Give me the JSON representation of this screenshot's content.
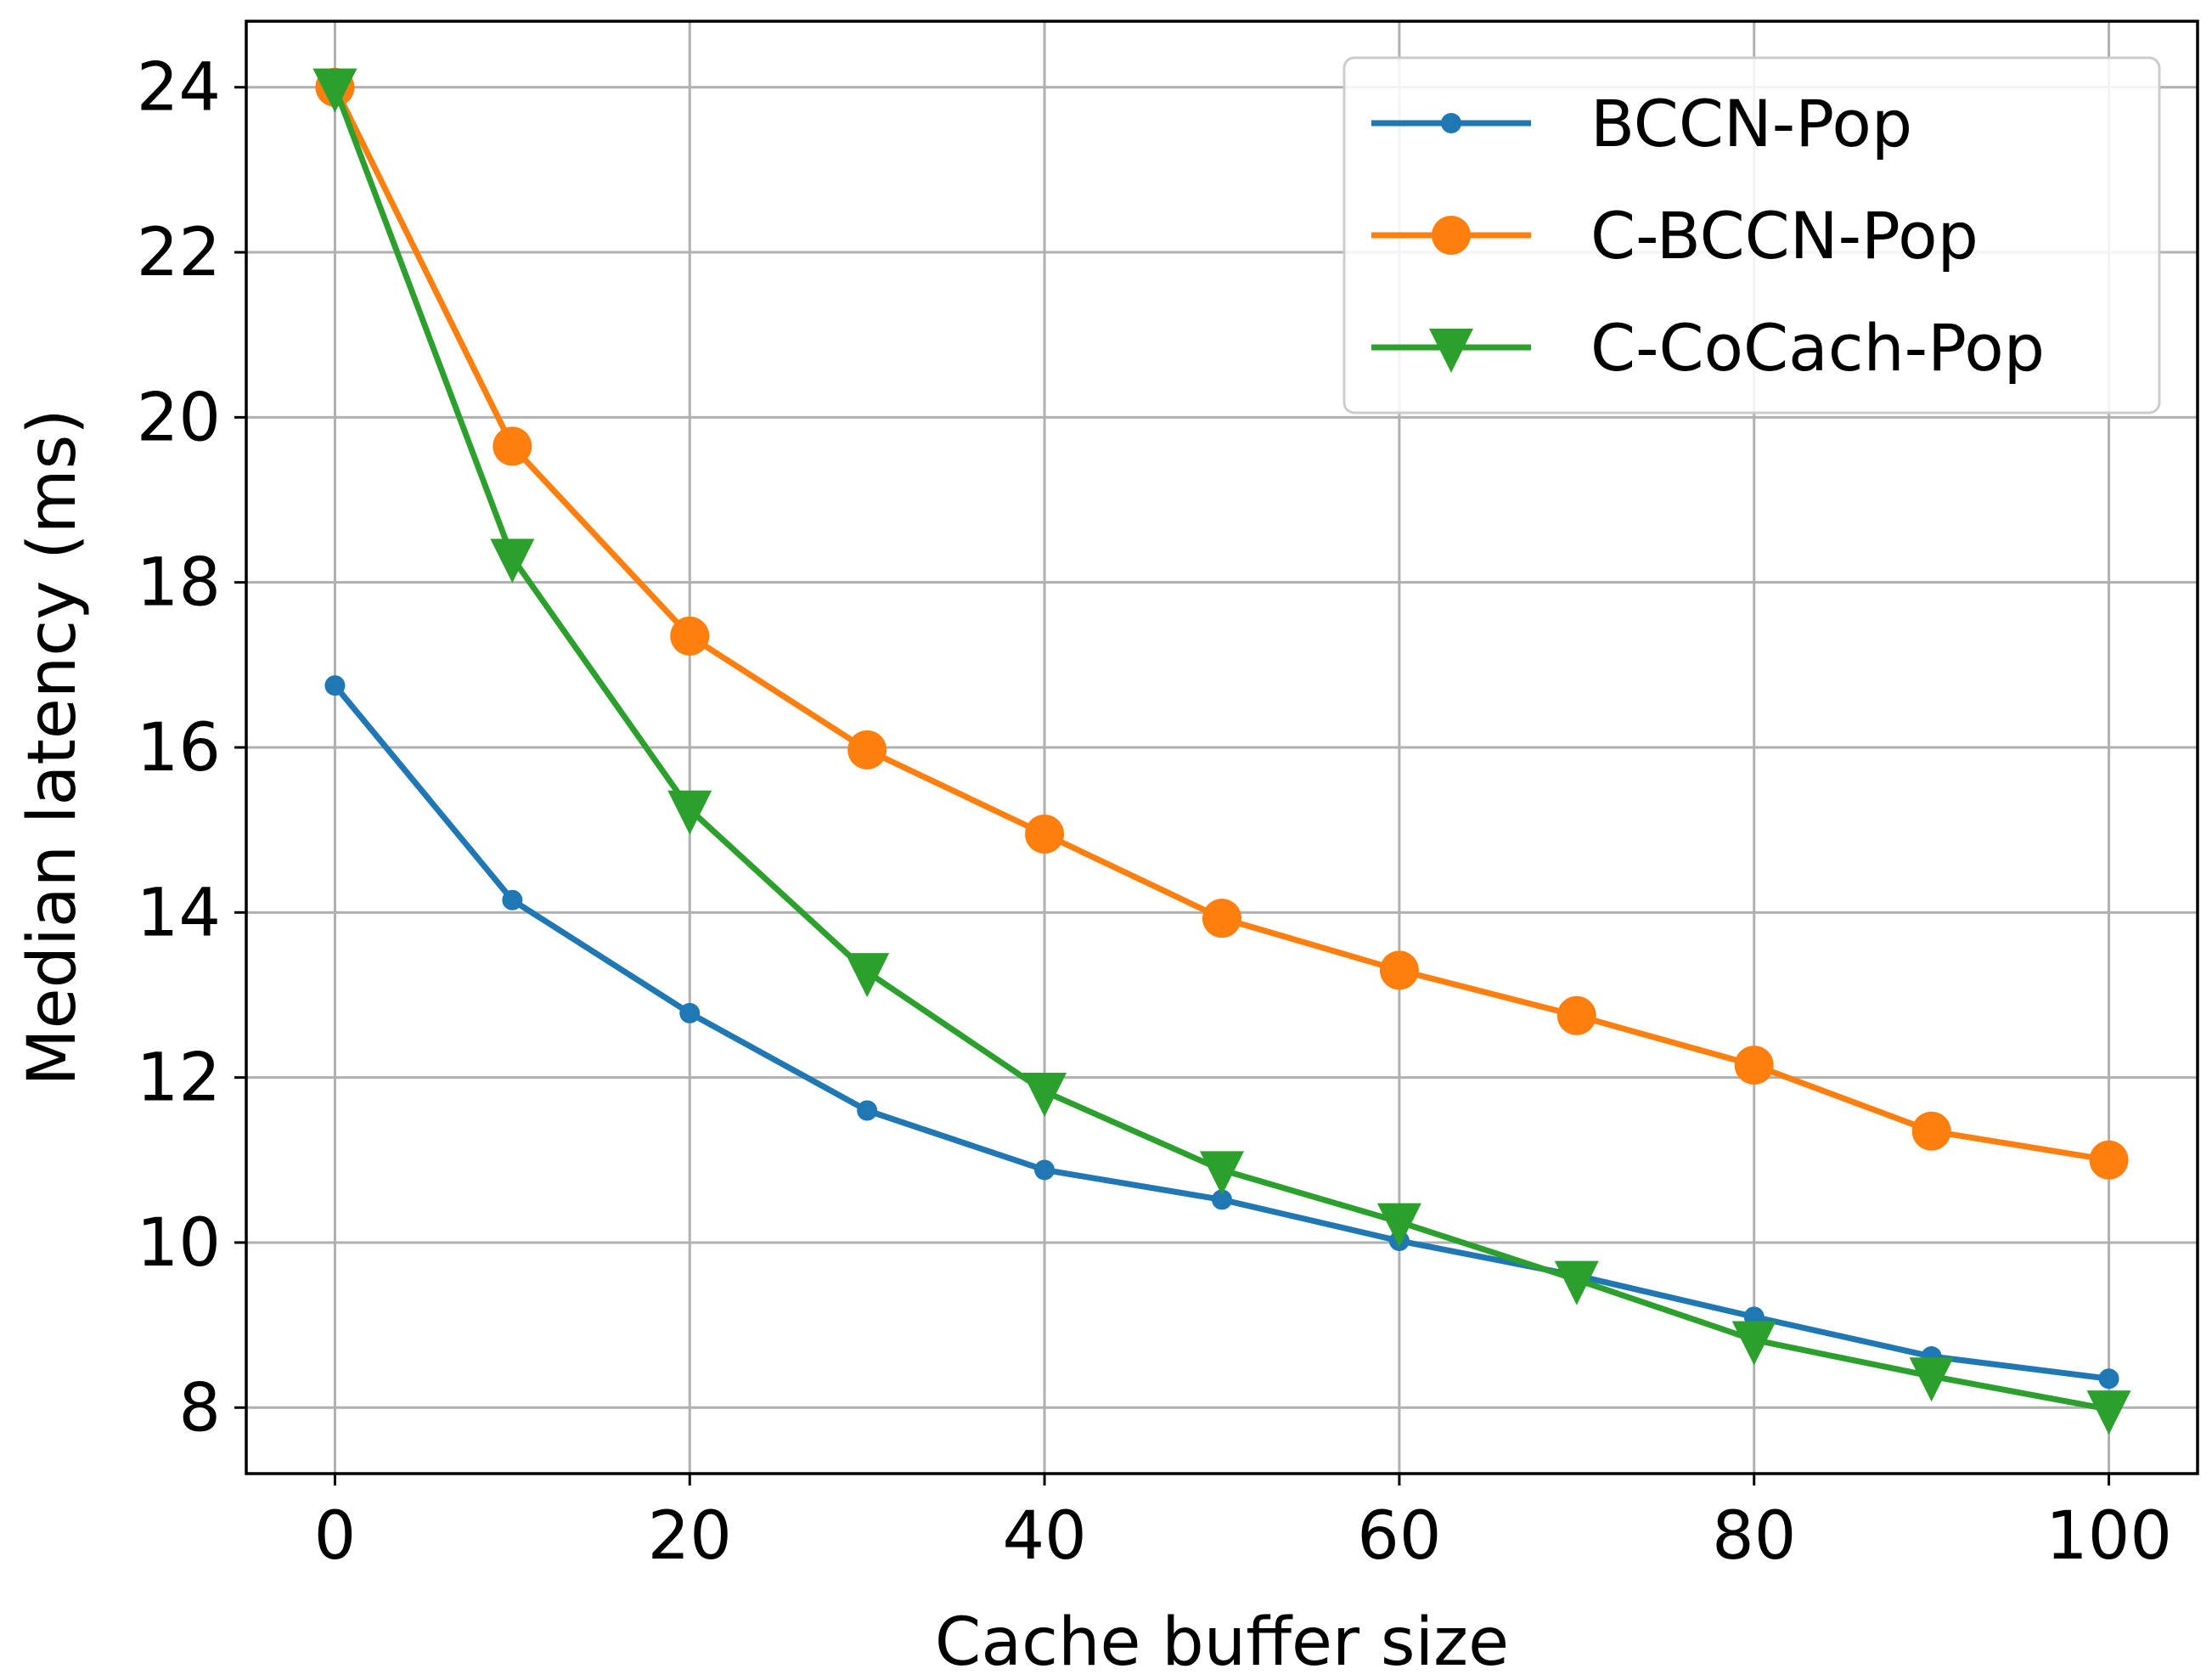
{
  "chart_data": {
    "type": "line",
    "title": "",
    "xlabel": "Cache buffer size",
    "ylabel": "Median latency (ms)",
    "xlim": [
      -5,
      105
    ],
    "ylim": [
      7.2,
      24.8
    ],
    "xticks": [
      0,
      20,
      40,
      60,
      80,
      100
    ],
    "yticks": [
      8,
      10,
      12,
      14,
      16,
      18,
      20,
      22,
      24
    ],
    "grid": true,
    "legend_position": "top-right",
    "x": [
      0,
      10,
      20,
      30,
      40,
      50,
      60,
      70,
      80,
      90,
      100
    ],
    "series": [
      {
        "name": "BCCN-Pop",
        "color": "#1f77b4",
        "marker": "small-circle",
        "values": [
          16.75,
          14.15,
          12.78,
          11.6,
          10.88,
          10.52,
          10.02,
          9.6,
          9.1,
          8.62,
          8.35
        ]
      },
      {
        "name": "C-BCCN-Pop",
        "color": "#ff7f0e",
        "marker": "large-circle",
        "values": [
          24.0,
          19.65,
          17.35,
          15.97,
          14.95,
          13.93,
          13.3,
          12.75,
          12.15,
          11.35,
          11.0
        ]
      },
      {
        "name": "C-CoCach-Pop",
        "color": "#2ca02c",
        "marker": "triangle-down",
        "values": [
          24.0,
          18.3,
          15.25,
          13.28,
          11.83,
          10.88,
          10.25,
          9.55,
          8.82,
          8.38,
          7.98
        ]
      }
    ]
  }
}
